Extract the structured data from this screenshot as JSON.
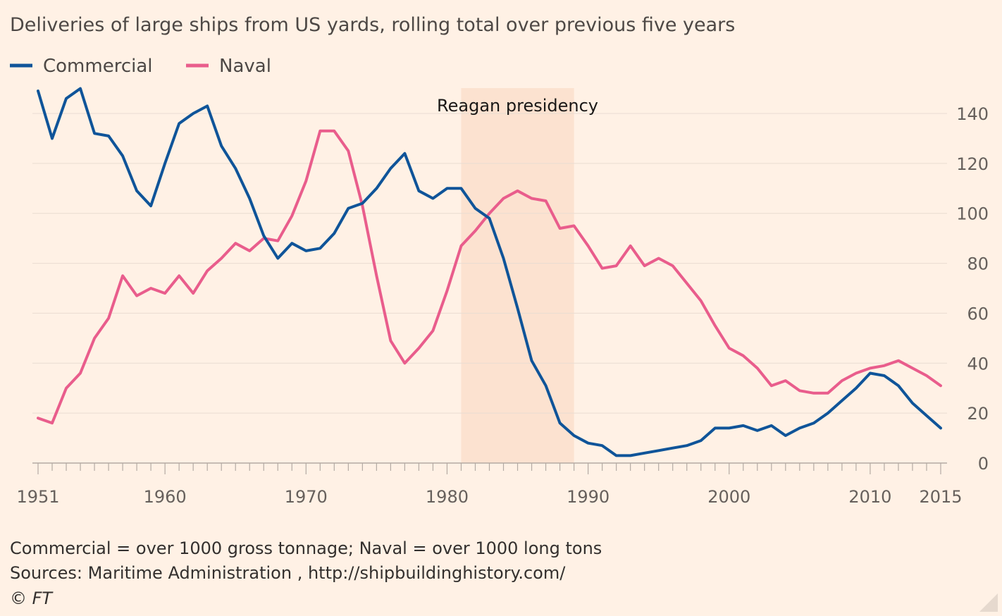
{
  "chart_data": {
    "type": "line",
    "title": "Deliveries of large ships from US yards, rolling total over previous five years",
    "x": [
      1951,
      1952,
      1953,
      1954,
      1955,
      1956,
      1957,
      1958,
      1959,
      1960,
      1961,
      1962,
      1963,
      1964,
      1965,
      1966,
      1967,
      1968,
      1969,
      1970,
      1971,
      1972,
      1973,
      1974,
      1975,
      1976,
      1977,
      1978,
      1979,
      1980,
      1981,
      1982,
      1983,
      1984,
      1985,
      1986,
      1987,
      1988,
      1989,
      1990,
      1991,
      1992,
      1993,
      1994,
      1995,
      1996,
      1997,
      1998,
      1999,
      2000,
      2001,
      2002,
      2003,
      2004,
      2005,
      2006,
      2007,
      2008,
      2009,
      2010,
      2011,
      2012,
      2013,
      2014,
      2015
    ],
    "series": [
      {
        "name": "Commercial",
        "color": "#0f5499",
        "values": [
          149,
          130,
          146,
          150,
          132,
          131,
          123,
          109,
          103,
          120,
          136,
          140,
          143,
          127,
          118,
          106,
          91,
          82,
          88,
          85,
          86,
          92,
          102,
          104,
          110,
          118,
          124,
          109,
          106,
          110,
          110,
          102,
          98,
          82,
          62,
          41,
          31,
          16,
          11,
          8,
          7,
          3,
          3,
          4,
          5,
          6,
          7,
          9,
          14,
          14,
          15,
          13,
          15,
          11,
          14,
          16,
          20,
          25,
          30,
          36,
          35,
          31,
          24,
          19,
          14
        ]
      },
      {
        "name": "Naval",
        "color": "#e95d8c",
        "values": [
          18,
          16,
          30,
          36,
          50,
          58,
          75,
          67,
          70,
          68,
          75,
          68,
          77,
          82,
          88,
          85,
          90,
          89,
          99,
          113,
          133,
          133,
          125,
          103,
          75,
          49,
          40,
          46,
          53,
          69,
          87,
          93,
          100,
          106,
          109,
          106,
          105,
          94,
          95,
          87,
          78,
          79,
          87,
          79,
          82,
          79,
          72,
          65,
          55,
          46,
          43,
          38,
          31,
          33,
          29,
          28,
          28,
          33,
          36,
          38,
          39,
          41,
          38,
          35,
          31
        ]
      }
    ],
    "x_ticks": [
      "1951",
      "1960",
      "1970",
      "1980",
      "1990",
      "2000",
      "2010",
      "2015"
    ],
    "y_ticks": [
      "0",
      "20",
      "40",
      "60",
      "80",
      "100",
      "120",
      "140"
    ],
    "xlim": [
      1951,
      2015
    ],
    "ylim": [
      0,
      140
    ],
    "y_axis_side": "right",
    "grid": true,
    "legend": "top-left",
    "annotations": [
      {
        "label": "Reagan presidency",
        "x_start": 1981,
        "x_end": 1989,
        "color": "#fbdfcc"
      }
    ],
    "background": "#fff1e5",
    "gridline_color": "#e9dcd2"
  },
  "footnotes": {
    "definition": "Commercial = over 1000 gross tonnage; Naval = over 1000 long tons",
    "sources": "Sources: Maritime Administration , http://shipbuildinghistory.com/",
    "copyright": "© FT"
  }
}
